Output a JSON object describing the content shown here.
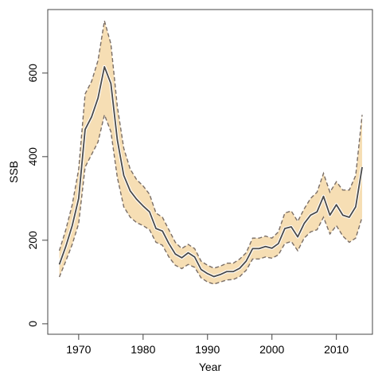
{
  "chart_data": {
    "type": "line",
    "title": "",
    "xlabel": "Year",
    "ylabel": "SSB",
    "xlim": [
      1965.2,
      2015.6
    ],
    "ylim": [
      -25,
      752
    ],
    "x_ticks": [
      1970,
      1980,
      1990,
      2000,
      2010
    ],
    "y_ticks": [
      0,
      200,
      400,
      600
    ],
    "grid": false,
    "legend": "none",
    "colors": {
      "band_fill": "#f6deb4",
      "bound_line": "#7a6e66",
      "estimate_line": "#4a4a4a"
    },
    "x": [
      1967,
      1968,
      1969,
      1970,
      1971,
      1972,
      1973,
      1974,
      1975,
      1976,
      1977,
      1978,
      1979,
      1980,
      1981,
      1982,
      1983,
      1984,
      1985,
      1986,
      1987,
      1988,
      1989,
      1990,
      1991,
      1992,
      1993,
      1994,
      1995,
      1996,
      1997,
      1998,
      1999,
      2000,
      2001,
      2002,
      2003,
      2004,
      2005,
      2006,
      2007,
      2008,
      2009,
      2010,
      2011,
      2012,
      2013,
      2014
    ],
    "series": [
      {
        "name": "",
        "role": "estimate",
        "values": [
          142,
          185,
          235,
          300,
          465,
          495,
          540,
          615,
          575,
          440,
          355,
          318,
          298,
          282,
          268,
          228,
          222,
          192,
          167,
          158,
          170,
          160,
          130,
          120,
          113,
          118,
          125,
          125,
          133,
          150,
          180,
          180,
          185,
          181,
          192,
          228,
          232,
          208,
          240,
          260,
          268,
          305,
          260,
          285,
          260,
          255,
          280,
          375
        ]
      },
      {
        "name": "",
        "role": "upper",
        "values": [
          175,
          225,
          285,
          370,
          550,
          580,
          630,
          725,
          670,
          520,
          420,
          370,
          345,
          330,
          310,
          265,
          255,
          225,
          195,
          180,
          190,
          180,
          150,
          140,
          133,
          138,
          145,
          145,
          155,
          170,
          205,
          205,
          210,
          205,
          220,
          265,
          270,
          245,
          275,
          300,
          315,
          360,
          315,
          340,
          320,
          320,
          355,
          500
        ]
      },
      {
        "name": "",
        "role": "lower",
        "values": [
          112,
          150,
          190,
          240,
          375,
          405,
          435,
          500,
          460,
          350,
          280,
          255,
          242,
          235,
          225,
          195,
          188,
          160,
          140,
          132,
          142,
          135,
          110,
          100,
          95,
          100,
          105,
          106,
          113,
          128,
          155,
          155,
          160,
          157,
          165,
          192,
          197,
          175,
          205,
          220,
          225,
          255,
          215,
          235,
          210,
          195,
          205,
          255
        ]
      }
    ]
  }
}
